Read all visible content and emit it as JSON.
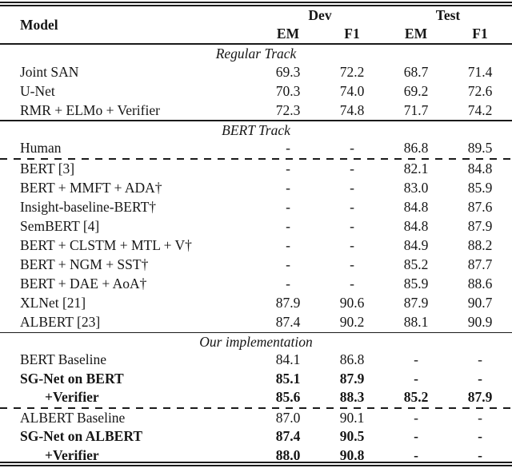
{
  "page": {
    "background": "#ffffff",
    "text_color": "#161616",
    "rule_color": "#1a1a1a"
  },
  "table": {
    "header": {
      "model_label": "Model",
      "group_dev": "Dev",
      "group_test": "Test",
      "sub_dev_em": "EM",
      "sub_dev_f1": "F1",
      "sub_test_em": "EM",
      "sub_test_f1": "F1"
    },
    "sections": [
      {
        "title": "Regular Track",
        "rows": [
          {
            "cells": [
              "Joint SAN",
              "69.3",
              "72.2",
              "68.7",
              "71.4"
            ]
          },
          {
            "cells": [
              "U-Net",
              "70.3",
              "74.0",
              "69.2",
              "72.6"
            ]
          },
          {
            "cells": [
              "RMR + ELMo + Verifier",
              "72.3",
              "74.8",
              "71.7",
              "74.2"
            ]
          }
        ]
      },
      {
        "title": "BERT Track",
        "rows": [
          {
            "cells": [
              "Human",
              "-",
              "-",
              "86.8",
              "89.5"
            ]
          },
          {
            "cells": [
              "BERT [3]",
              "-",
              "-",
              "82.1",
              "84.8"
            ]
          },
          {
            "cells": [
              "BERT + MMFT + ADA†",
              "-",
              "-",
              "83.0",
              "85.9"
            ]
          },
          {
            "cells": [
              "Insight-baseline-BERT†",
              "-",
              "-",
              "84.8",
              "87.6"
            ]
          },
          {
            "cells": [
              "SemBERT [4]",
              "-",
              "-",
              "84.8",
              "87.9"
            ]
          },
          {
            "cells": [
              "BERT + CLSTM + MTL + V†",
              "-",
              "-",
              "84.9",
              "88.2"
            ]
          },
          {
            "cells": [
              "BERT + NGM + SST†",
              "-",
              "-",
              "85.2",
              "87.7"
            ]
          },
          {
            "cells": [
              "BERT + DAE + AoA†",
              "-",
              "-",
              "85.9",
              "88.6"
            ]
          },
          {
            "cells": [
              "XLNet [21]",
              "87.9",
              "90.6",
              "87.9",
              "90.7"
            ]
          },
          {
            "cells": [
              "ALBERT [23]",
              "87.4",
              "90.2",
              "88.1",
              "90.9"
            ]
          }
        ]
      },
      {
        "title": "Our implementation",
        "rows": [
          {
            "cells": [
              "BERT Baseline",
              "84.1",
              "86.8",
              "-",
              "-"
            ]
          },
          {
            "cells": [
              "SG-Net on BERT",
              "85.1",
              "87.9",
              "-",
              "-"
            ]
          },
          {
            "cells": [
              "+Verifier",
              "85.6",
              "88.3",
              "85.2",
              "87.9"
            ]
          },
          {
            "cells": [
              "ALBERT Baseline",
              "87.0",
              "90.1",
              "-",
              "-"
            ]
          },
          {
            "cells": [
              "SG-Net on ALBERT",
              "87.4",
              "90.5",
              "-",
              "-"
            ]
          },
          {
            "cells": [
              "+Verifier",
              "88.0",
              "90.8",
              "-",
              "-"
            ]
          }
        ]
      }
    ]
  }
}
